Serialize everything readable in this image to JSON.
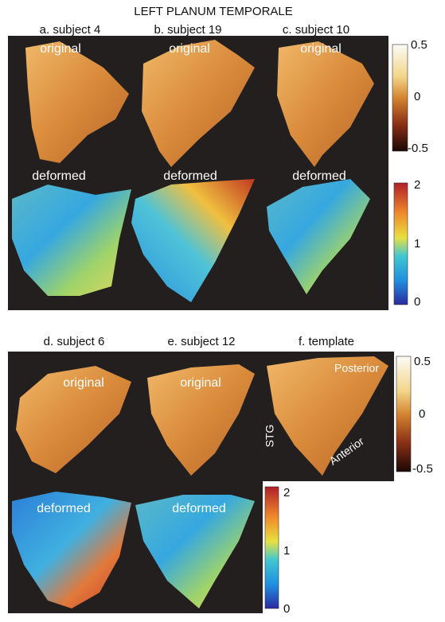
{
  "title": "LEFT PLANUM TEMPORALE",
  "groups": [
    {
      "panels": [
        {
          "label": "a. subject 4",
          "views": [
            "original",
            "deformed"
          ]
        },
        {
          "label": "b. subject 19",
          "views": [
            "original",
            "deformed"
          ]
        },
        {
          "label": "c. subject 10",
          "views": [
            "original",
            "deformed"
          ]
        }
      ],
      "colorbars": [
        {
          "ticks": [
            0.5,
            0,
            -0.5
          ]
        },
        {
          "ticks": [
            2,
            1,
            0
          ]
        }
      ]
    },
    {
      "panels": [
        {
          "label": "d. subject 6",
          "views": [
            "original",
            "deformed"
          ]
        },
        {
          "label": "e. subject 12",
          "views": [
            "original",
            "deformed"
          ]
        },
        {
          "label": "f. template",
          "views": []
        }
      ],
      "colorbars": [
        {
          "ticks": [
            0.5,
            0,
            -0.5
          ]
        },
        {
          "ticks": [
            2,
            1,
            0
          ]
        }
      ]
    }
  ],
  "template_annotations": [
    "Posterior",
    "STG",
    "Anterior"
  ]
}
